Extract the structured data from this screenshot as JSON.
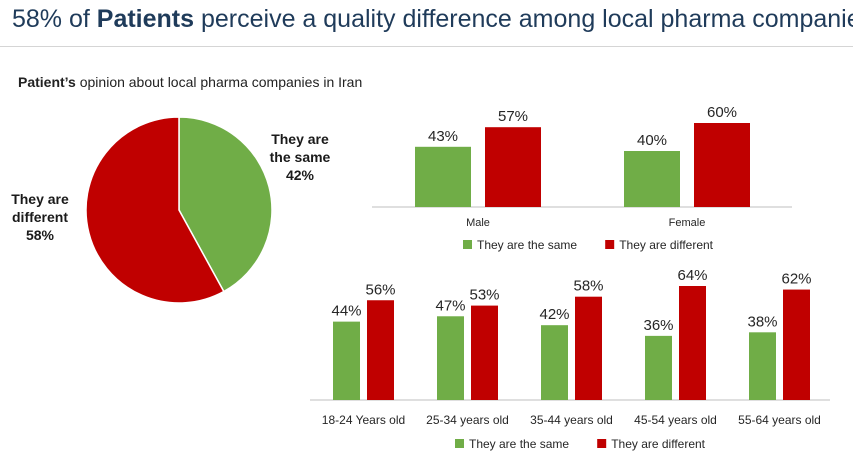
{
  "header": {
    "title_prefix": "58% of ",
    "title_bold": "Patients",
    "title_suffix": " perceive a quality difference among local pharma companies"
  },
  "subtitle": {
    "bold": "Patient’s",
    "rest": " opinion about local pharma companies in Iran"
  },
  "colors": {
    "same": "#70ad47",
    "different": "#c00000"
  },
  "chart_data": [
    {
      "type": "pie",
      "slices": [
        {
          "label_lines": [
            "They are",
            "the same"
          ],
          "value": 42,
          "value_label": "42%",
          "color": "#70ad47"
        },
        {
          "label_lines": [
            "They are",
            "different"
          ],
          "value": 58,
          "value_label": "58%",
          "color": "#c00000"
        }
      ]
    },
    {
      "type": "bar",
      "categories": [
        "Male",
        "Female"
      ],
      "series": [
        {
          "name": "They are the same",
          "values": [
            43,
            40
          ],
          "labels": [
            "43%",
            "40%"
          ],
          "color": "#70ad47"
        },
        {
          "name": "They are different",
          "values": [
            57,
            60
          ],
          "labels": [
            "57%",
            "60%"
          ],
          "color": "#c00000"
        }
      ],
      "ylim": [
        0,
        60
      ],
      "legend": "bottom"
    },
    {
      "type": "bar",
      "categories": [
        "18-24 Years old",
        "25-34 years old",
        "35-44 years old",
        "45-54 years old",
        "55-64 years old"
      ],
      "series": [
        {
          "name": "They are the same",
          "values": [
            44,
            47,
            42,
            36,
            38
          ],
          "labels": [
            "44%",
            "47%",
            "42%",
            "36%",
            "38%"
          ],
          "color": "#70ad47"
        },
        {
          "name": "They are different",
          "values": [
            56,
            53,
            58,
            64,
            62
          ],
          "labels": [
            "56%",
            "53%",
            "58%",
            "64%",
            "62%"
          ],
          "color": "#c00000"
        }
      ],
      "ylim": [
        0,
        64
      ],
      "legend": "bottom"
    }
  ]
}
